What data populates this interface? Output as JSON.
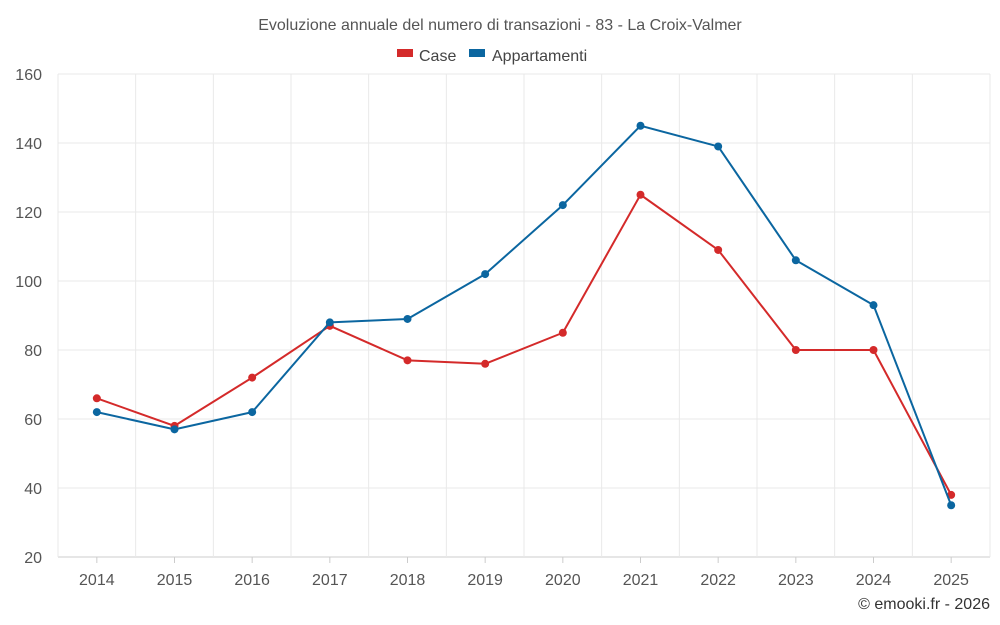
{
  "chart_data": {
    "type": "line",
    "title": "Evoluzione annuale del numero di transazioni - 83 - La Croix-Valmer",
    "categories": [
      "2014",
      "2015",
      "2016",
      "2017",
      "2018",
      "2019",
      "2020",
      "2021",
      "2022",
      "2023",
      "2024",
      "2025"
    ],
    "series": [
      {
        "name": "Case",
        "color": "#d42a2a",
        "values": [
          66,
          58,
          72,
          87,
          77,
          76,
          85,
          125,
          109,
          80,
          80,
          38
        ]
      },
      {
        "name": "Appartamenti",
        "color": "#0b66a0",
        "values": [
          62,
          57,
          62,
          88,
          89,
          102,
          122,
          145,
          139,
          106,
          93,
          35
        ]
      }
    ],
    "ylim": [
      20,
      160
    ],
    "yticks": [
      20,
      40,
      60,
      80,
      100,
      120,
      140,
      160
    ],
    "xlabel": "",
    "ylabel": "",
    "grid": true,
    "legend": "top-center"
  },
  "credit": "© emooki.fr - 2026"
}
